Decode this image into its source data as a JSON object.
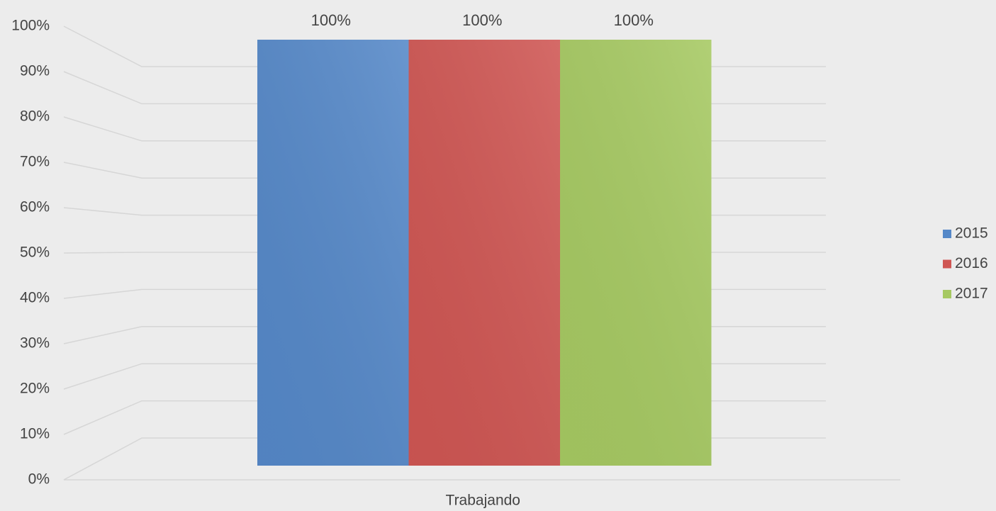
{
  "chart_data": {
    "type": "bar",
    "categories": [
      "Trabajando"
    ],
    "series": [
      {
        "name": "2015",
        "color": "#5588c8",
        "values": [
          100
        ],
        "value_labels": [
          "100%"
        ]
      },
      {
        "name": "2016",
        "color": "#cf5653",
        "values": [
          100
        ],
        "value_labels": [
          "100%"
        ]
      },
      {
        "name": "2017",
        "color": "#a6c962",
        "values": [
          100
        ],
        "value_labels": [
          "100%"
        ]
      }
    ],
    "ylim": [
      0,
      100
    ],
    "yticks": [
      {
        "value": 0,
        "label": "0%"
      },
      {
        "value": 10,
        "label": "10%"
      },
      {
        "value": 20,
        "label": "20%"
      },
      {
        "value": 30,
        "label": "30%"
      },
      {
        "value": 40,
        "label": "40%"
      },
      {
        "value": 50,
        "label": "50%"
      },
      {
        "value": 60,
        "label": "60%"
      },
      {
        "value": 70,
        "label": "70%"
      },
      {
        "value": 80,
        "label": "80%"
      },
      {
        "value": 90,
        "label": "90%"
      },
      {
        "value": 100,
        "label": "100%"
      }
    ],
    "grid": true,
    "legend": "right"
  }
}
